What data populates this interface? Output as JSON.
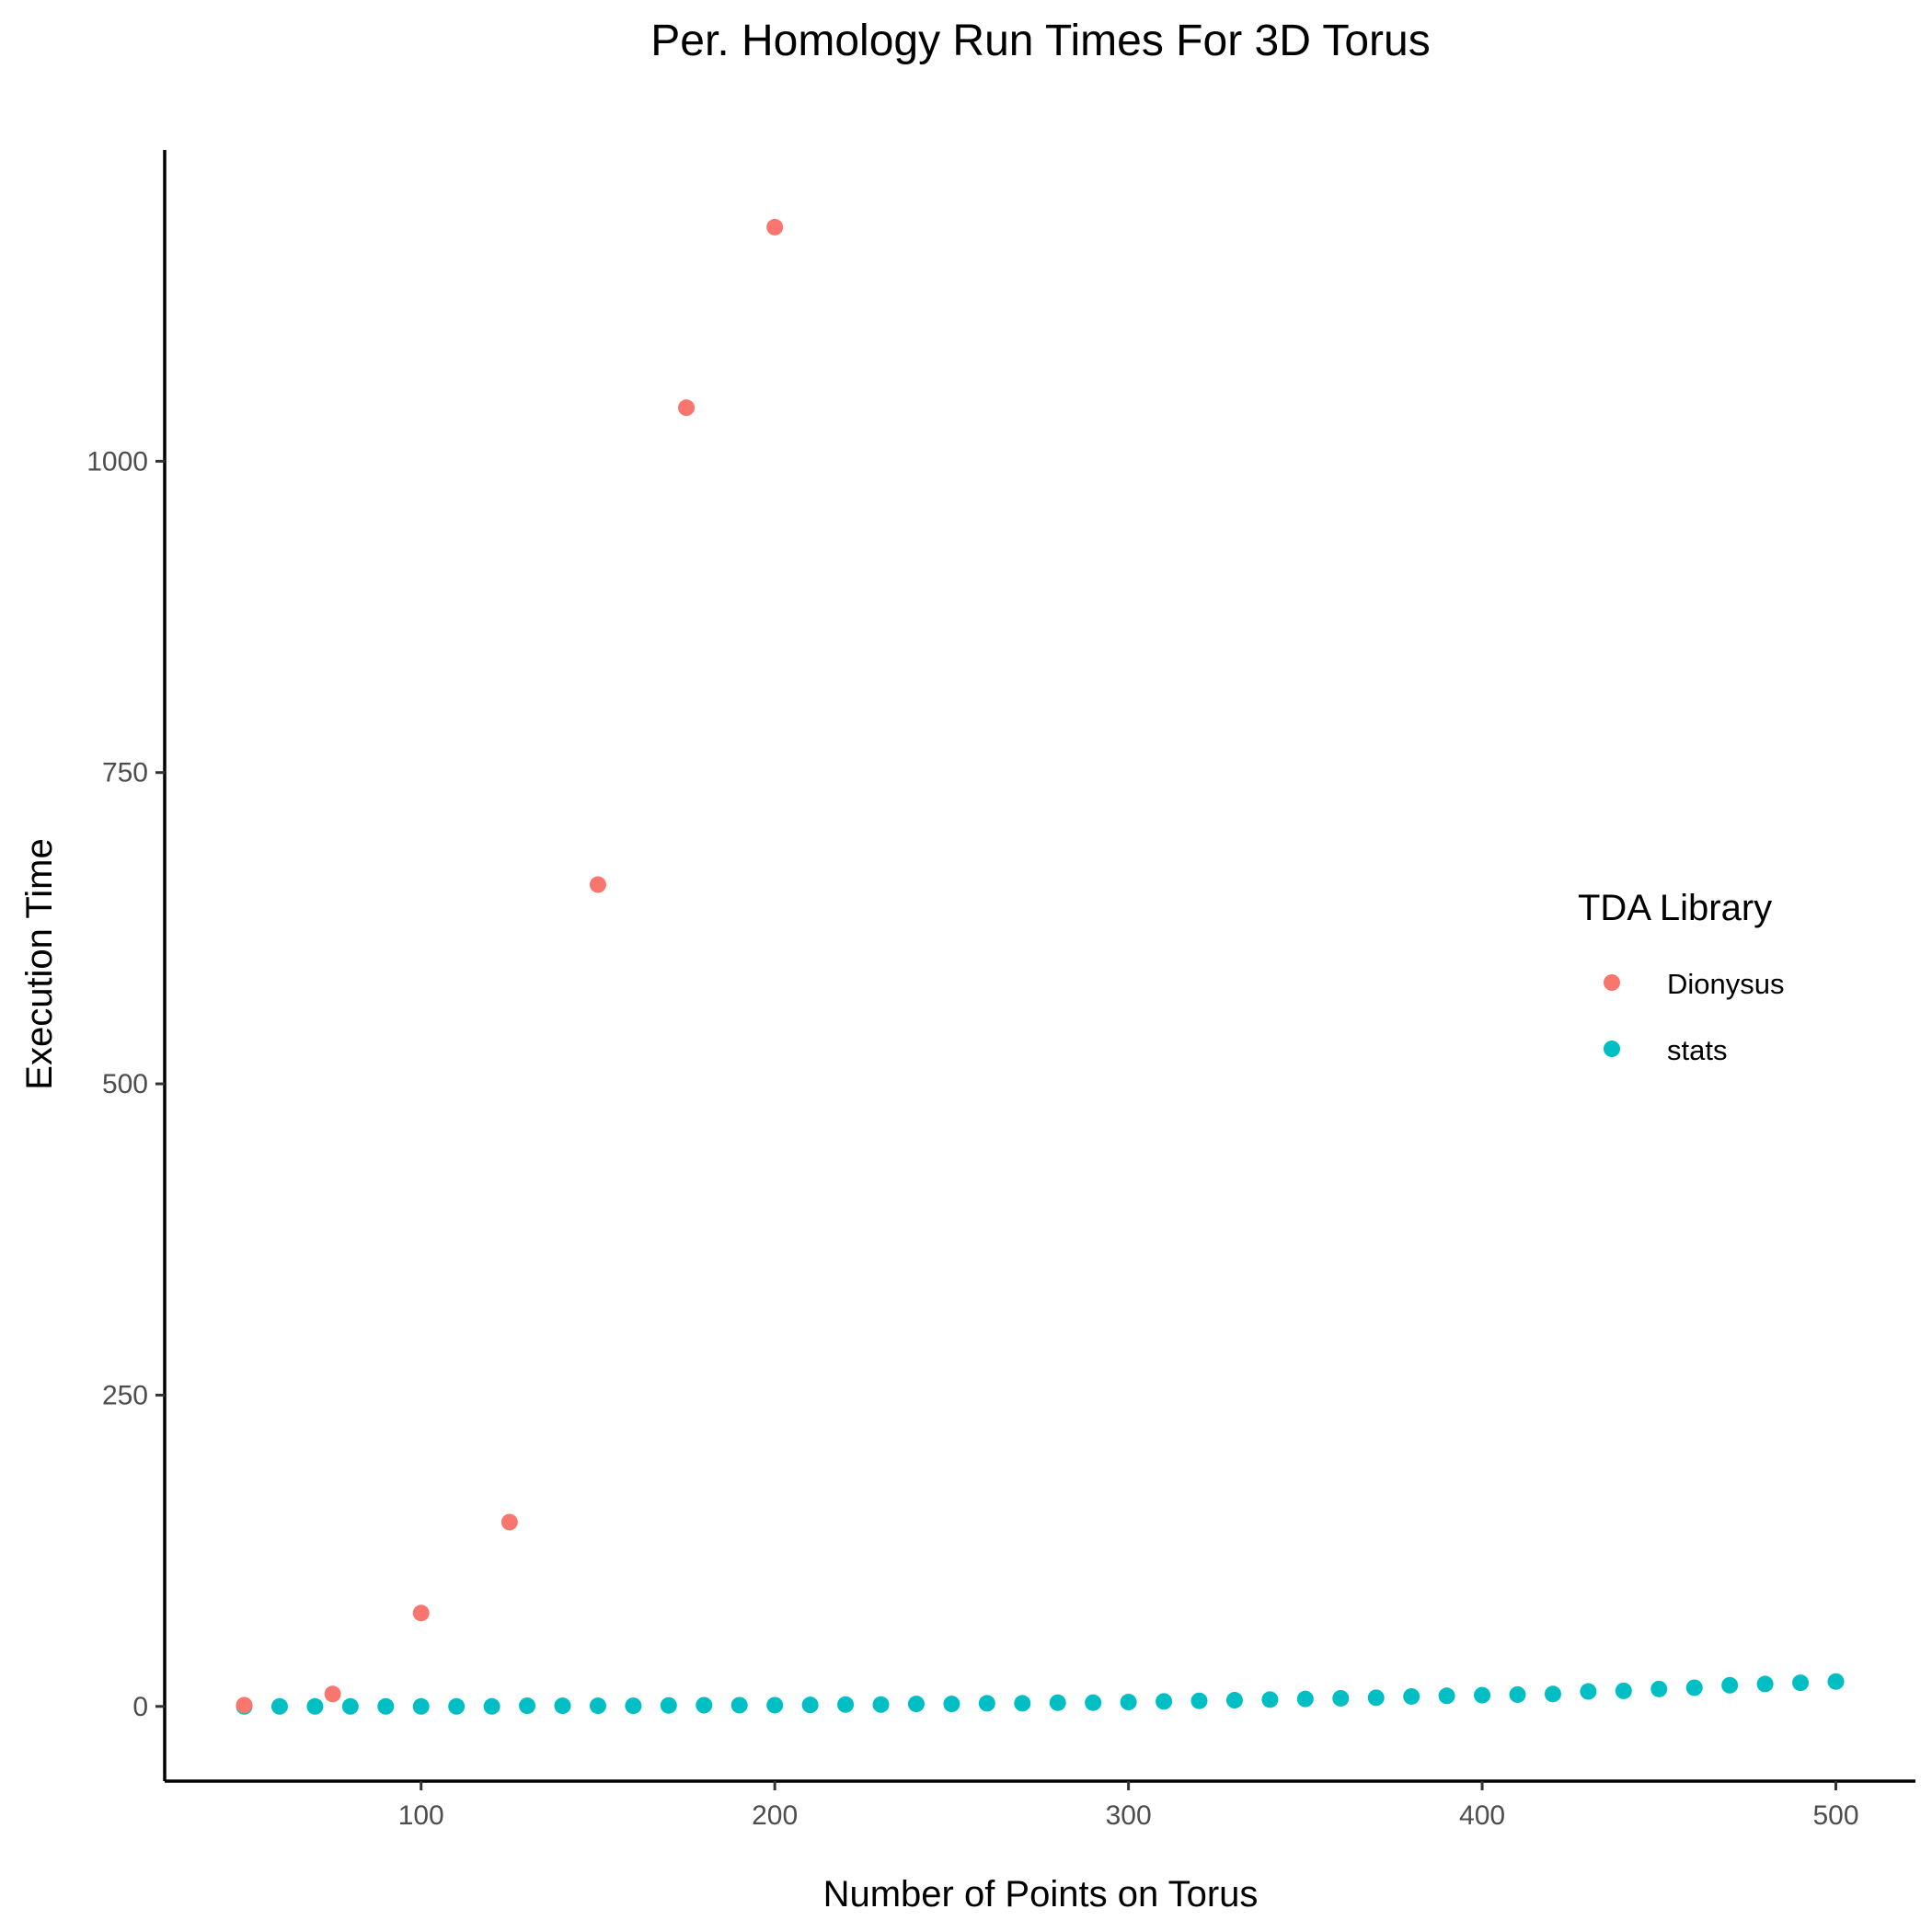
{
  "chart_data": {
    "type": "scatter",
    "title": "Per. Homology Run Times For 3D Torus",
    "xlabel": "Number of Points on Torus",
    "ylabel": "Execution Time",
    "xlim": [
      27.5,
      522.5
    ],
    "ylim": [
      -60,
      1250
    ],
    "x_ticks": [
      100,
      200,
      300,
      400,
      500
    ],
    "y_ticks": [
      0,
      250,
      500,
      750,
      1000
    ],
    "grid": false,
    "legend": {
      "title": "TDA Library",
      "position": "right"
    },
    "series": [
      {
        "name": "Dionysus",
        "color": "#F8766D",
        "x": [
          50,
          75,
          100,
          125,
          150,
          175,
          200
        ],
        "y": [
          1,
          10,
          75,
          148,
          660,
          1043,
          1188
        ]
      },
      {
        "name": "stats",
        "color": "#00BFC4",
        "x": [
          50,
          60,
          70,
          80,
          90,
          100,
          110,
          120,
          130,
          140,
          150,
          160,
          170,
          180,
          190,
          200,
          210,
          220,
          230,
          240,
          250,
          260,
          270,
          280,
          290,
          300,
          310,
          320,
          330,
          340,
          350,
          360,
          370,
          380,
          390,
          400,
          410,
          420,
          430,
          440,
          450,
          460,
          470,
          480,
          490,
          500
        ],
        "y": [
          0,
          0,
          0,
          0,
          0,
          0,
          0,
          0,
          0.5,
          0.5,
          0.5,
          0.5,
          0.8,
          1,
          1,
          1,
          1.2,
          1.5,
          1.5,
          2,
          2,
          2.5,
          2.5,
          3,
          3,
          3.5,
          4,
          4.5,
          5,
          5.5,
          6,
          6.5,
          7,
          8,
          8.5,
          9,
          9.5,
          10,
          12,
          12.5,
          14,
          15,
          17,
          18,
          19,
          20
        ]
      }
    ]
  }
}
